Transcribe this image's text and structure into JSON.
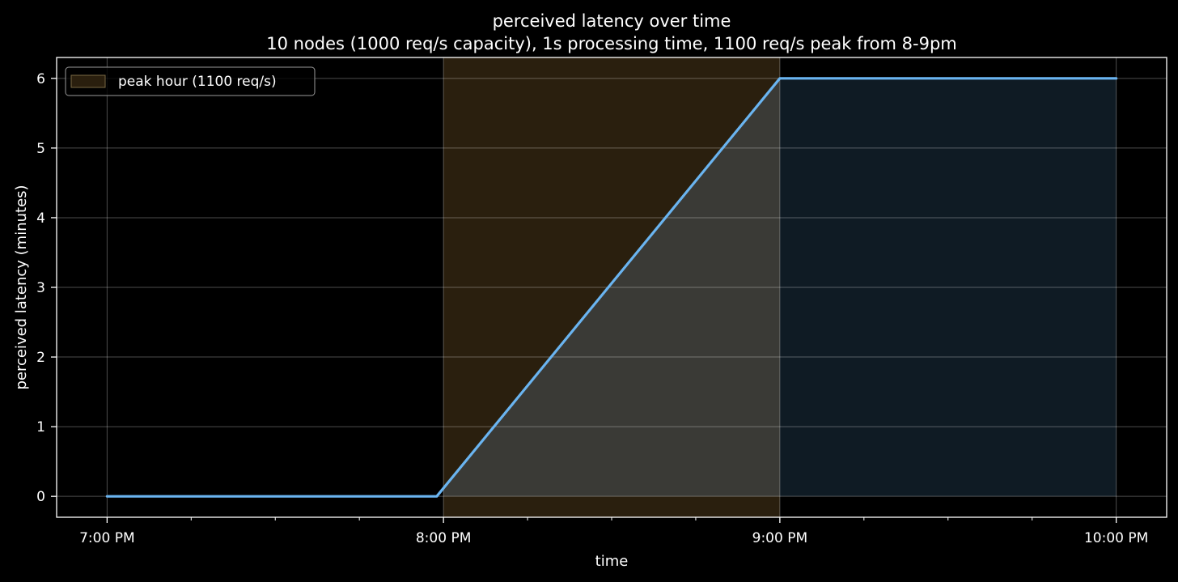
{
  "chart_data": {
    "type": "line",
    "title": "perceived latency over time",
    "subtitle": "10 nodes (1000 req/s capacity), 1s processing time, 1100 req/s peak from 8-9pm",
    "xlabel": "time",
    "ylabel": "perceived latency (minutes)",
    "x_unit": "hours (24h clock)",
    "xlim": [
      18.85,
      22.15
    ],
    "ylim": [
      -0.3,
      6.3
    ],
    "x_ticks": [
      {
        "value": 19,
        "label": "7:00 PM"
      },
      {
        "value": 20,
        "label": "8:00 PM"
      },
      {
        "value": 21,
        "label": "9:00 PM"
      },
      {
        "value": 22,
        "label": "10:00 PM"
      }
    ],
    "x_minor_ticks": [
      19.25,
      19.5,
      19.75,
      20.25,
      20.5,
      20.75,
      21.25,
      21.5,
      21.75
    ],
    "y_ticks": [
      0,
      1,
      2,
      3,
      4,
      5,
      6
    ],
    "grid": true,
    "legend_position": "top-left",
    "series": [
      {
        "x": [
          19,
          19.98,
          21,
          22
        ],
        "y": [
          0,
          0,
          6,
          6
        ],
        "color": "#6ab4f0",
        "fill_under": true
      }
    ],
    "shaded_regions": [
      {
        "name": "peak hour (1100 req/s)",
        "x_start": 20,
        "x_end": 21,
        "color": "#2a1f0e"
      }
    ],
    "colors": {
      "background": "#000000",
      "grid": "#555555",
      "line": "#6ab4f0",
      "peak_band": "#2a1f0e",
      "fill_after_peak": "#0f1b24",
      "fill_during_peak": "#3a3a36"
    }
  }
}
